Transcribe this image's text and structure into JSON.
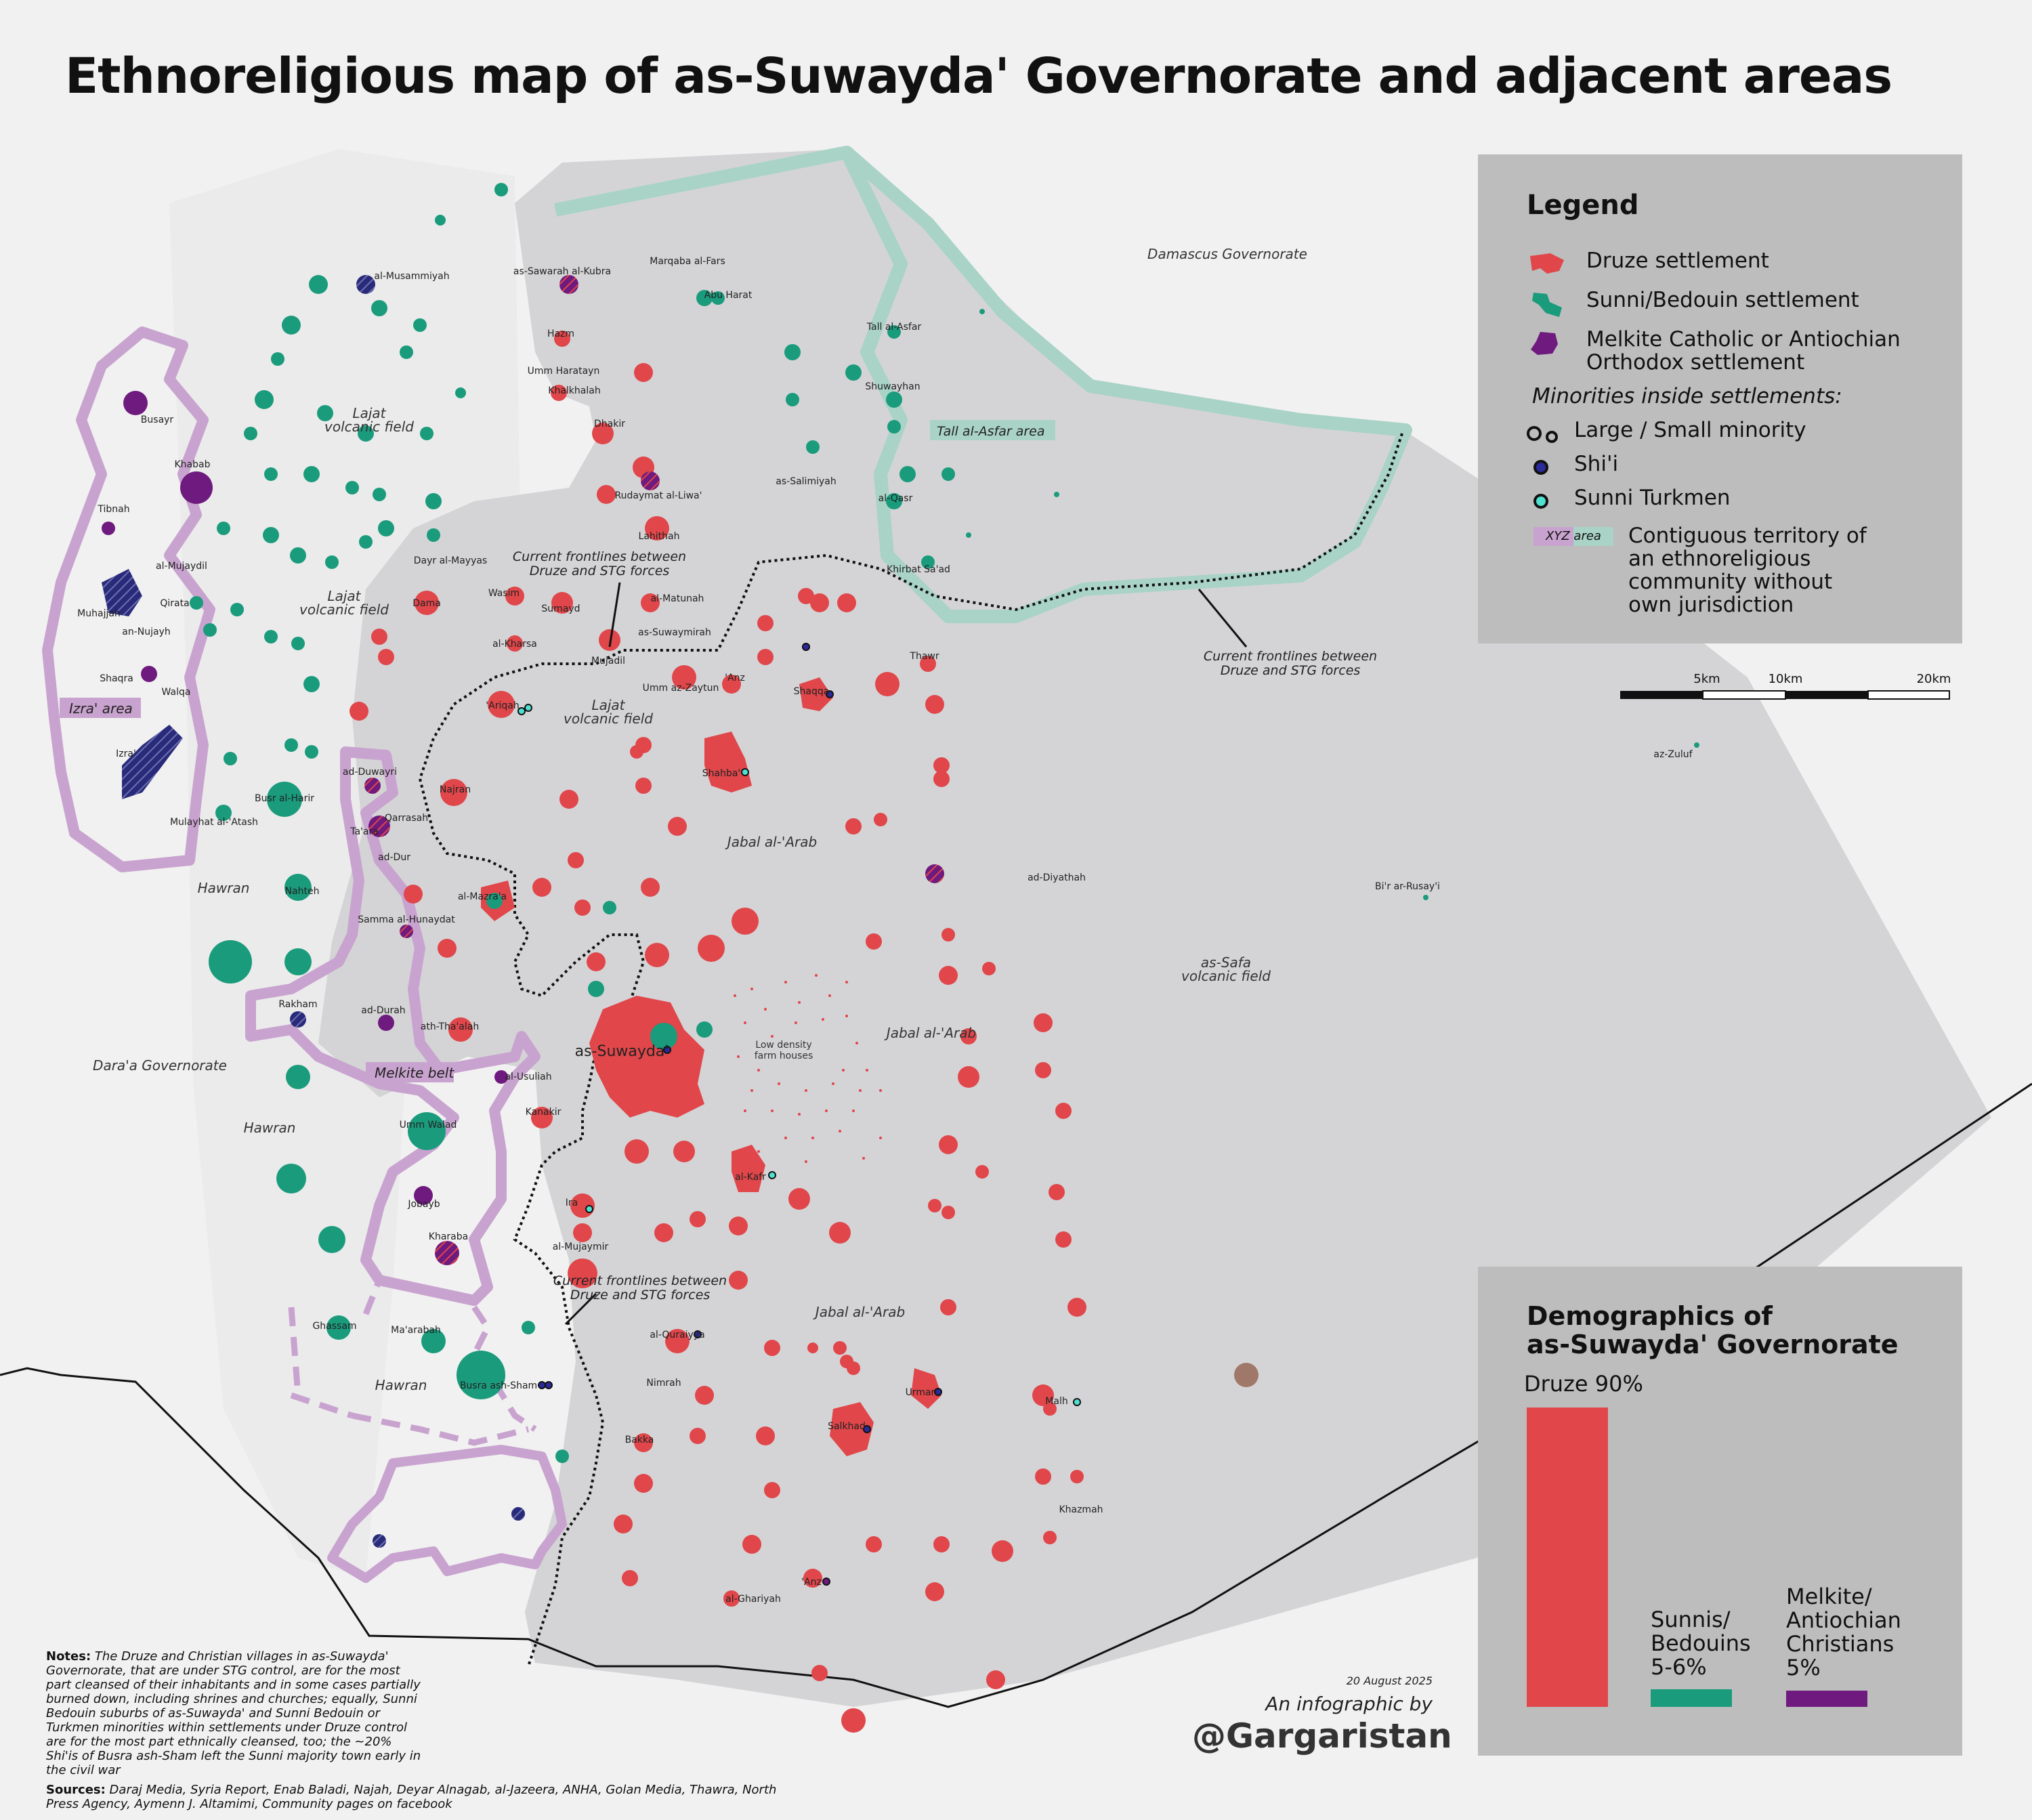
{
  "title": "Ethnoreligious map of as-Suwayda' Governorate and adjacent areas",
  "legend": {
    "heading": "Legend",
    "druze": "Druze settlement",
    "sunni": "Sunni/Bedouin settlement",
    "christian_line1": "Melkite Catholic or Antiochian",
    "christian_line2": "Orthodox settlement",
    "minorities_heading": "Minorities inside settlements:",
    "minority_size": "Large / Small minority",
    "shia": "Shi'i",
    "turkmen": "Sunni Turkmen",
    "area_swatch": "XYZ area",
    "contiguous_line1": "Contiguous territory of",
    "contiguous_line2": "an ethnoreligious",
    "contiguous_line3": "community without",
    "contiguous_line4": "own jurisdiction"
  },
  "scale": {
    "s5": "5km",
    "s10": "10km",
    "s20": "20km"
  },
  "demographics": {
    "heading_line1": "Demographics of",
    "heading_line2": "as-Suwayda' Governorate",
    "druze_label": "Druze 90%",
    "druze_pct": 90,
    "sunni_label_1": "Sunnis/",
    "sunni_label_2": "Bedouins",
    "sunni_label_3": "5-6%",
    "sunni_pct": 5.5,
    "christian_label_1": "Melkite/",
    "christian_label_2": "Antiochian",
    "christian_label_3": "Christians",
    "christian_label_4": "5%",
    "christian_pct": 5
  },
  "colors": {
    "druze": "#e0464a",
    "sunni": "#1a9b7c",
    "christian": "#6e1a7e",
    "shia": "#2a2a9a",
    "turkmen": "#4fe0d0",
    "contiguous_purple": "#c9a3cf",
    "contiguous_teal": "#a9d3c6",
    "governorate": "#d4d4d6"
  },
  "regions": {
    "lajat1": "Lajat",
    "lajat1b": "volcanic field",
    "lajat2": "Lajat",
    "lajat2b": "volcanic field",
    "lajat3": "Lajat",
    "lajat3b": "volcanic field",
    "jabal1": "Jabal al-'Arab",
    "jabal2": "Jabal al-'Arab",
    "jabal3": "Jabal al-'Arab",
    "safa": "as-Safa",
    "safab": "volcanic field",
    "hawran1": "Hawran",
    "hawran2": "Hawran",
    "hawran3": "Hawran",
    "daraa": "Dara'a Governorate",
    "damascus": "Damascus Governorate",
    "farm1": "Low density",
    "farm2": "farm houses"
  },
  "areas": {
    "izra": "Izra' area",
    "melkite": "Melkite belt",
    "asfar": "Tall al-Asfar area"
  },
  "frontlines": {
    "l1a": "Current frontlines between",
    "l1b": "Druze and STG forces",
    "l2a": "Current frontlines between",
    "l2b": "Druze and STG forces",
    "l3a": "Current frontlines between",
    "l3b": "Druze and STG forces"
  },
  "towns": [
    {
      "name": "as-Suwayda'"
    },
    {
      "name": "Shahba'"
    },
    {
      "name": "Salkhad"
    },
    {
      "name": "Izra'"
    },
    {
      "name": "Busra ash-Sham"
    },
    {
      "name": "al-Kafr"
    },
    {
      "name": "Shaqqa"
    },
    {
      "name": "'Ariqah"
    },
    {
      "name": "al-Mazra'a"
    },
    {
      "name": "Umm Walad"
    },
    {
      "name": "Nahteh"
    },
    {
      "name": "Busr al-Harir"
    },
    {
      "name": "Mulayhat al-'Atash"
    },
    {
      "name": "Rakham"
    },
    {
      "name": "ad-Durah"
    },
    {
      "name": "ath-Tha'alah"
    },
    {
      "name": "al-Usuliah"
    },
    {
      "name": "Kanakir"
    },
    {
      "name": "Kharaba"
    },
    {
      "name": "Jobayb"
    },
    {
      "name": "Ghassam"
    },
    {
      "name": "Ma'arabah"
    },
    {
      "name": "Busayr"
    },
    {
      "name": "Khabab"
    },
    {
      "name": "Tibnah"
    },
    {
      "name": "Muhajjah"
    },
    {
      "name": "Shaqra"
    },
    {
      "name": "Walqa"
    },
    {
      "name": "Qirata"
    },
    {
      "name": "al-Mujaydil"
    },
    {
      "name": "an-Nujayh"
    },
    {
      "name": "Lahithah"
    },
    {
      "name": "Rudaymat al-Liwa'"
    },
    {
      "name": "as-Sawarah al-Kubra"
    },
    {
      "name": "al-Musammiyah"
    },
    {
      "name": "Marqaba al-Fars"
    },
    {
      "name": "Abu Harat"
    },
    {
      "name": "Tall al-Asfar"
    },
    {
      "name": "Shuwayhan"
    },
    {
      "name": "Khirbat Sa'ad"
    },
    {
      "name": "al-Qasr"
    },
    {
      "name": "as-Salimiyah"
    },
    {
      "name": "Dhakir"
    },
    {
      "name": "Khalkhalah"
    },
    {
      "name": "Umm Haratayn"
    },
    {
      "name": "Hazm"
    },
    {
      "name": "Dama"
    },
    {
      "name": "Wasim"
    },
    {
      "name": "Sumayd"
    },
    {
      "name": "al-Matunah"
    },
    {
      "name": "as-Suwaymirah"
    },
    {
      "name": "al-Kharsa"
    },
    {
      "name": "Mujadil"
    },
    {
      "name": "Umm az-Zaytun"
    },
    {
      "name": "'Anz"
    },
    {
      "name": "Najran"
    },
    {
      "name": "Qarrasah"
    },
    {
      "name": "ad-Duwayri"
    },
    {
      "name": "Ta'ara"
    },
    {
      "name": "ad-Dur"
    },
    {
      "name": "Samma al-Hunaydat"
    },
    {
      "name": "al-Mujaymir"
    },
    {
      "name": "Ira"
    },
    {
      "name": "al-Quraiyya"
    },
    {
      "name": "Nimrah"
    },
    {
      "name": "Bakka"
    },
    {
      "name": "Urman"
    },
    {
      "name": "Malh"
    },
    {
      "name": "al-Ghariyah"
    },
    {
      "name": "Khazmah"
    },
    {
      "name": "'Anz"
    },
    {
      "name": "Dayr al-Mayyas"
    },
    {
      "name": "az-Zuluf"
    },
    {
      "name": "Bi'r ar-Rusay'i"
    },
    {
      "name": "ad-Diyathah"
    },
    {
      "name": "Thawr"
    }
  ],
  "footer": {
    "notes_label": "Notes:",
    "notes_text": "The Druze and Christian villages in as-Suwayda' Governorate, that are under STG control, are for the most part cleansed of their inhabitants and in some cases partially burned down, including shrines and churches; equally, Sunni Bedouin suburbs of as-Suwayda' and Sunni Bedouin or Turkmen minorities within settlements under Druze control are for the most part ethnically cleansed, too; the ~20% Shi'is of Busra ash-Sham left the Sunni majority town early in the civil war",
    "sources_label": "Sources:",
    "sources_text": "Daraj Media, Syria Report, Enab Baladi, Najah, Deyar Alnagab, al-Jazeera, ANHA, Golan Media, Thawra, North Press Agency, Aymenn J. Altamimi, Community pages on facebook",
    "date": "20 August 2025",
    "infographic_by": "An infographic by",
    "handle": "@Gargaristan"
  }
}
